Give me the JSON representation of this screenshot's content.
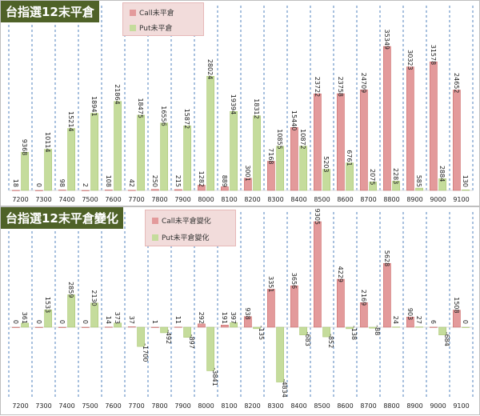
{
  "colors": {
    "call": "#e39a9b",
    "put": "#c5dc9c",
    "grid": "#4f81bd",
    "title_bg": "#4f6228",
    "legend_bg": "#f2dcdb"
  },
  "chart_data": [
    {
      "type": "bar",
      "title": "台指選12末平倉",
      "categories": [
        "7200",
        "7300",
        "7400",
        "7500",
        "7600",
        "7700",
        "7800",
        "7900",
        "8000",
        "8100",
        "8200",
        "8300",
        "8400",
        "8500",
        "8600",
        "8700",
        "8800",
        "8900",
        "9000",
        "9100"
      ],
      "series": [
        {
          "name": "Call未平倉",
          "values": [
            18,
            0,
            98,
            2,
            108,
            42,
            250,
            215,
            1282,
            889,
            3001,
            7168,
            15440,
            23722,
            23758,
            24709,
            35349,
            30323,
            31578,
            24652
          ]
        },
        {
          "name": "Put未平倉",
          "values": [
            9368,
            10114,
            15214,
            18941,
            21864,
            18475,
            16556,
            15872,
            28024,
            19394,
            18312,
            10855,
            10872,
            5203,
            6761,
            2075,
            2283,
            585,
            2884,
            130
          ]
        }
      ],
      "legend": "top-center",
      "grid": "vertical-dashed"
    },
    {
      "type": "bar",
      "title": "台指選12末平倉變化",
      "categories": [
        "7200",
        "7300",
        "7400",
        "7500",
        "7600",
        "7700",
        "7800",
        "7900",
        "8000",
        "8100",
        "8200",
        "8300",
        "8400",
        "8500",
        "8600",
        "8700",
        "8800",
        "8900",
        "9000",
        "9100"
      ],
      "series": [
        {
          "name": "Call未平倉變化",
          "values": [
            0,
            0,
            0,
            0,
            14,
            37,
            1,
            11,
            292,
            191,
            938,
            3351,
            3656,
            9305,
            4229,
            2169,
            5628,
            903,
            6,
            1508
          ]
        },
        {
          "name": "Put未平倉變化",
          "values": [
            361,
            1533,
            2859,
            2130,
            373,
            -1700,
            -492,
            -897,
            -3841,
            397,
            -135,
            -4834,
            -683,
            -852,
            -138,
            -88,
            24,
            27,
            -684,
            0
          ]
        }
      ],
      "legend": "top-center",
      "grid": "vertical-dashed"
    }
  ]
}
